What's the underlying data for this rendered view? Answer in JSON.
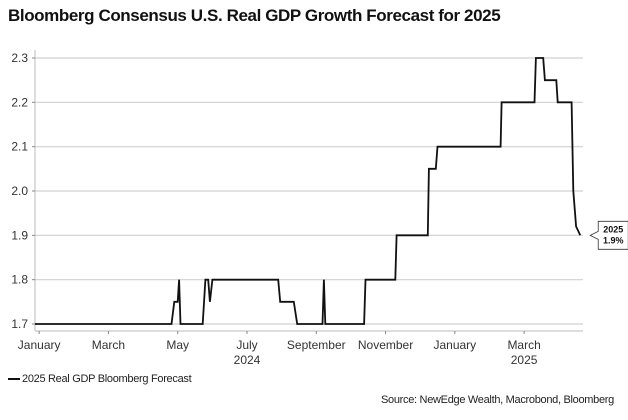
{
  "chart_data": {
    "type": "line",
    "title": "Bloomberg Consensus U.S. Real GDP Growth Forecast for 2025",
    "xlabel": "",
    "ylabel": "",
    "ylim": [
      1.7,
      2.3
    ],
    "yticks": [
      "1.7",
      "1.8",
      "1.9",
      "2.0",
      "2.1",
      "2.2",
      "2.3"
    ],
    "grid": true,
    "legend_position": "bottom-left",
    "x_tick_labels": [
      {
        "label": "January",
        "month_index": 0
      },
      {
        "label": "March",
        "month_index": 2
      },
      {
        "label": "May",
        "month_index": 4
      },
      {
        "label": "July",
        "month_index": 6
      },
      {
        "label": "September",
        "month_index": 8
      },
      {
        "label": "November",
        "month_index": 10
      },
      {
        "label": "January",
        "month_index": 12
      },
      {
        "label": "March",
        "month_index": 14
      }
    ],
    "x_year_labels": [
      {
        "label": "2024",
        "month_index": 6
      },
      {
        "label": "2025",
        "month_index": 14
      }
    ],
    "xlim_months": [
      -0.12,
      15.7
    ],
    "series": [
      {
        "name": "2025 Real GDP Bloomberg Forecast",
        "color": "#111111",
        "points": [
          [
            -0.12,
            1.7
          ],
          [
            3.82,
            1.7
          ],
          [
            3.9,
            1.75
          ],
          [
            4.0,
            1.75
          ],
          [
            4.04,
            1.8
          ],
          [
            4.08,
            1.7
          ],
          [
            4.72,
            1.7
          ],
          [
            4.8,
            1.8
          ],
          [
            4.88,
            1.8
          ],
          [
            4.93,
            1.75
          ],
          [
            5.0,
            1.8
          ],
          [
            6.9,
            1.8
          ],
          [
            6.96,
            1.75
          ],
          [
            7.35,
            1.75
          ],
          [
            7.45,
            1.7
          ],
          [
            8.18,
            1.7
          ],
          [
            8.22,
            1.8
          ],
          [
            8.26,
            1.7
          ],
          [
            9.38,
            1.7
          ],
          [
            9.42,
            1.8
          ],
          [
            10.28,
            1.8
          ],
          [
            10.32,
            1.9
          ],
          [
            11.22,
            1.9
          ],
          [
            11.25,
            2.05
          ],
          [
            11.45,
            2.05
          ],
          [
            11.5,
            2.1
          ],
          [
            13.32,
            2.1
          ],
          [
            13.35,
            2.2
          ],
          [
            14.3,
            2.2
          ],
          [
            14.34,
            2.3
          ],
          [
            14.55,
            2.3
          ],
          [
            14.6,
            2.25
          ],
          [
            14.93,
            2.25
          ],
          [
            14.97,
            2.2
          ],
          [
            15.37,
            2.2
          ],
          [
            15.42,
            2.0
          ],
          [
            15.5,
            1.92
          ],
          [
            15.56,
            1.91
          ],
          [
            15.62,
            1.9
          ]
        ]
      }
    ],
    "annotations": [
      {
        "line1": "2025",
        "line2": "1.9%",
        "x_month": 15.62,
        "y": 1.9
      }
    ]
  },
  "legend": {
    "label": "2025 Real GDP Bloomberg Forecast"
  },
  "source": "Source: NewEdge Wealth, Macrobond, Bloomberg"
}
